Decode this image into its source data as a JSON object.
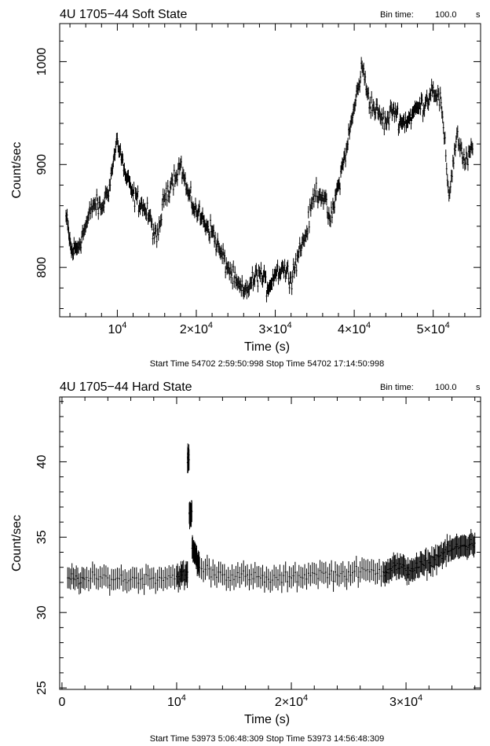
{
  "chart_data": [
    {
      "type": "scatter",
      "title": "4U 1705−44 Soft State",
      "bin_label": "Bin time:",
      "bin_value": "100.0",
      "bin_unit": "s",
      "xlabel": "Time (s)",
      "ylabel": "Count/sec",
      "xlim": [
        2700,
        56000
      ],
      "ylim": [
        752,
        1037
      ],
      "xticks": [
        {
          "value": 10000,
          "mant": "10",
          "exp": "4"
        },
        {
          "value": 20000,
          "mant": "2×10",
          "exp": "4"
        },
        {
          "value": 30000,
          "mant": "3×10",
          "exp": "4"
        },
        {
          "value": 40000,
          "mant": "4×10",
          "exp": "4"
        },
        {
          "value": 50000,
          "mant": "5×10",
          "exp": "4"
        }
      ],
      "yticks": [
        800,
        900,
        1000
      ],
      "footer": "Start Time 54702  2:59:50:998    Stop Time 54702 17:14:50:998",
      "error_bar": 6,
      "grid": false,
      "x": [
        3500,
        4200,
        5000,
        6000,
        7000,
        8000,
        9000,
        10000,
        11000,
        12000,
        13000,
        14000,
        15000,
        16000,
        17000,
        18000,
        19000,
        20000,
        21000,
        22000,
        23000,
        24000,
        25000,
        26000,
        27000,
        28000,
        29000,
        30000,
        31000,
        32000,
        33000,
        34000,
        35000,
        36000,
        37000,
        38000,
        39000,
        40000,
        41000,
        42000,
        43000,
        44000,
        45000,
        46000,
        47000,
        48000,
        49000,
        50000,
        51000,
        52000,
        53000,
        54000,
        55000
      ],
      "y": [
        850,
        815,
        820,
        840,
        862,
        857,
        880,
        925,
        890,
        870,
        862,
        850,
        825,
        870,
        885,
        900,
        870,
        855,
        845,
        835,
        815,
        800,
        785,
        775,
        785,
        795,
        780,
        795,
        800,
        790,
        815,
        835,
        875,
        870,
        845,
        880,
        915,
        955,
        995,
        960,
        950,
        940,
        955,
        940,
        945,
        955,
        960,
        975,
        960,
        870,
        930,
        900,
        915
      ]
    },
    {
      "type": "scatter",
      "title": "4U 1705−44 Hard State",
      "bin_label": "Bin time:",
      "bin_value": "100.0",
      "bin_unit": "s",
      "xlabel": "Time (s)",
      "ylabel": "Count/sec",
      "xlim": [
        -200,
        36500
      ],
      "ylim": [
        24.9,
        44.3
      ],
      "xticks": [
        {
          "value": 0,
          "mant": "0",
          "exp": ""
        },
        {
          "value": 10000,
          "mant": "10",
          "exp": "4"
        },
        {
          "value": 20000,
          "mant": "2×10",
          "exp": "4"
        },
        {
          "value": 30000,
          "mant": "3×10",
          "exp": "4"
        }
      ],
      "yticks": [
        25,
        30,
        35,
        40
      ],
      "footer": "Start Time 53973  5:06:48:309    Stop Time 53973 14:56:48:309",
      "error_bar": 0.7,
      "grid": false,
      "x": [
        500,
        2000,
        4000,
        6000,
        8000,
        10000,
        10900,
        11000,
        11200,
        11500,
        12000,
        14000,
        16000,
        18000,
        20000,
        22000,
        24000,
        26000,
        28000,
        29000,
        30000,
        31000,
        32000,
        33000,
        34000,
        35000,
        36000
      ],
      "y": [
        32.3,
        32.2,
        32.3,
        32.2,
        32.3,
        32.4,
        32.5,
        40.2,
        36.6,
        34.1,
        33.0,
        32.5,
        32.4,
        32.2,
        32.3,
        32.6,
        32.5,
        32.7,
        32.7,
        33.1,
        32.8,
        33.0,
        33.3,
        33.8,
        34.2,
        34.4,
        34.6
      ]
    }
  ]
}
